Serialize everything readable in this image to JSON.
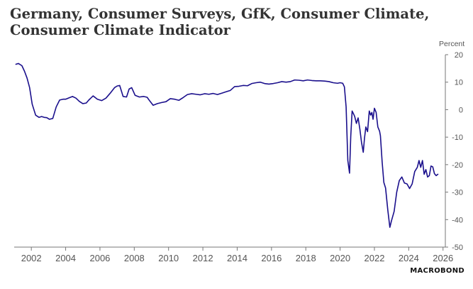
{
  "title": "Germany, Consumer Surveys, GfK, Consumer Climate, Consumer Climate Indicator",
  "logo_text": "MACROBOND",
  "chart_data": {
    "type": "line",
    "title": "Germany, Consumer Surveys, GfK, Consumer Climate, Consumer Climate Indicator",
    "ylabel": "Percent",
    "xlabel": "",
    "xlim": [
      2001.0,
      2026.3
    ],
    "ylim": [
      -50,
      20
    ],
    "x_ticks": [
      "2002",
      "2004",
      "2006",
      "2008",
      "2010",
      "2012",
      "2014",
      "2016",
      "2018",
      "2020",
      "2022",
      "2024",
      "2026"
    ],
    "y_ticks": [
      20,
      10,
      0,
      -10,
      -20,
      -30,
      -40,
      -50
    ],
    "y_axis_side": "right",
    "grid": false,
    "line_color": "#1a0f8c",
    "series": [
      {
        "x": [
          2001.1,
          2001.25,
          2001.45,
          2001.6,
          2001.75,
          2001.9,
          2002.05,
          2002.25,
          2002.45,
          2002.6,
          2002.75,
          2002.9,
          2003.05,
          2003.25,
          2003.45,
          2003.65,
          2003.85,
          2004.0,
          2004.2,
          2004.4,
          2004.6,
          2004.8,
          2005.0,
          2005.2,
          2005.35,
          2005.6,
          2005.85,
          2006.1,
          2006.35,
          2006.6,
          2006.85,
          2007.0,
          2007.15,
          2007.35,
          2007.55,
          2007.7,
          2007.85,
          2008.05,
          2008.3,
          2008.55,
          2008.75,
          2008.9,
          2009.1,
          2009.35,
          2009.6,
          2009.85,
          2010.1,
          2010.35,
          2010.6,
          2010.85,
          2011.1,
          2011.35,
          2011.6,
          2011.85,
          2012.1,
          2012.35,
          2012.6,
          2012.85,
          2013.1,
          2013.35,
          2013.6,
          2013.85,
          2014.1,
          2014.35,
          2014.6,
          2014.85,
          2015.1,
          2015.35,
          2015.6,
          2015.85,
          2016.1,
          2016.35,
          2016.6,
          2016.85,
          2017.1,
          2017.35,
          2017.6,
          2017.85,
          2018.1,
          2018.35,
          2018.6,
          2018.85,
          2019.1,
          2019.35,
          2019.6,
          2019.85,
          2020.0,
          2020.15,
          2020.25,
          2020.35,
          2020.45,
          2020.55,
          2020.62,
          2020.7,
          2020.78,
          2020.85,
          2020.95,
          2021.05,
          2021.15,
          2021.25,
          2021.35,
          2021.42,
          2021.5,
          2021.6,
          2021.7,
          2021.78,
          2021.85,
          2021.92,
          2022.0,
          2022.1,
          2022.2,
          2022.3,
          2022.35,
          2022.45,
          2022.55,
          2022.65,
          2022.78,
          2022.9,
          2023.0,
          2023.15,
          2023.3,
          2023.45,
          2023.6,
          2023.75,
          2023.9,
          2024.05,
          2024.2,
          2024.35,
          2024.5,
          2024.6,
          2024.7,
          2024.8,
          2024.9,
          2025.0,
          2025.1,
          2025.2,
          2025.3,
          2025.4,
          2025.5,
          2025.6,
          2025.7
        ],
        "y": [
          16.5,
          16.8,
          16.0,
          14.0,
          11.5,
          8.0,
          2.0,
          -2.0,
          -2.8,
          -2.5,
          -2.8,
          -2.9,
          -3.5,
          -3.2,
          1.0,
          3.5,
          3.8,
          3.8,
          4.3,
          4.8,
          4.2,
          3.0,
          2.2,
          2.4,
          3.5,
          5.0,
          3.8,
          3.3,
          4.2,
          6.0,
          8.0,
          8.6,
          8.8,
          4.8,
          4.6,
          7.5,
          8.0,
          5.2,
          4.6,
          4.8,
          4.5,
          3.2,
          1.6,
          2.2,
          2.6,
          2.9,
          4.0,
          3.8,
          3.4,
          4.4,
          5.5,
          5.8,
          5.6,
          5.4,
          5.8,
          5.6,
          5.9,
          5.5,
          6.0,
          6.5,
          7.0,
          8.4,
          8.5,
          8.8,
          8.7,
          9.5,
          9.8,
          10.0,
          9.5,
          9.3,
          9.5,
          9.8,
          10.2,
          10.0,
          10.2,
          10.8,
          10.7,
          10.5,
          10.8,
          10.6,
          10.5,
          10.5,
          10.4,
          10.2,
          9.8,
          9.6,
          9.8,
          9.6,
          8.3,
          1.0,
          -18.5,
          -23.1,
          -9.8,
          -0.5,
          -1.5,
          -2.5,
          -5.0,
          -3.0,
          -7.0,
          -12.0,
          -15.5,
          -10.5,
          -6.3,
          -8.0,
          -0.5,
          -2.0,
          -1.0,
          -3.5,
          0.5,
          -1.0,
          -6.3,
          -7.8,
          -9.5,
          -19.0,
          -26.5,
          -28.5,
          -36.5,
          -42.8,
          -40.3,
          -37.0,
          -30.0,
          -25.8,
          -24.5,
          -26.7,
          -27.0,
          -28.7,
          -27.0,
          -22.5,
          -21.0,
          -18.5,
          -21.0,
          -18.5,
          -23.5,
          -21.8,
          -24.5,
          -24.0,
          -20.5,
          -20.8,
          -23.3,
          -24.0,
          -23.5
        ]
      }
    ]
  }
}
